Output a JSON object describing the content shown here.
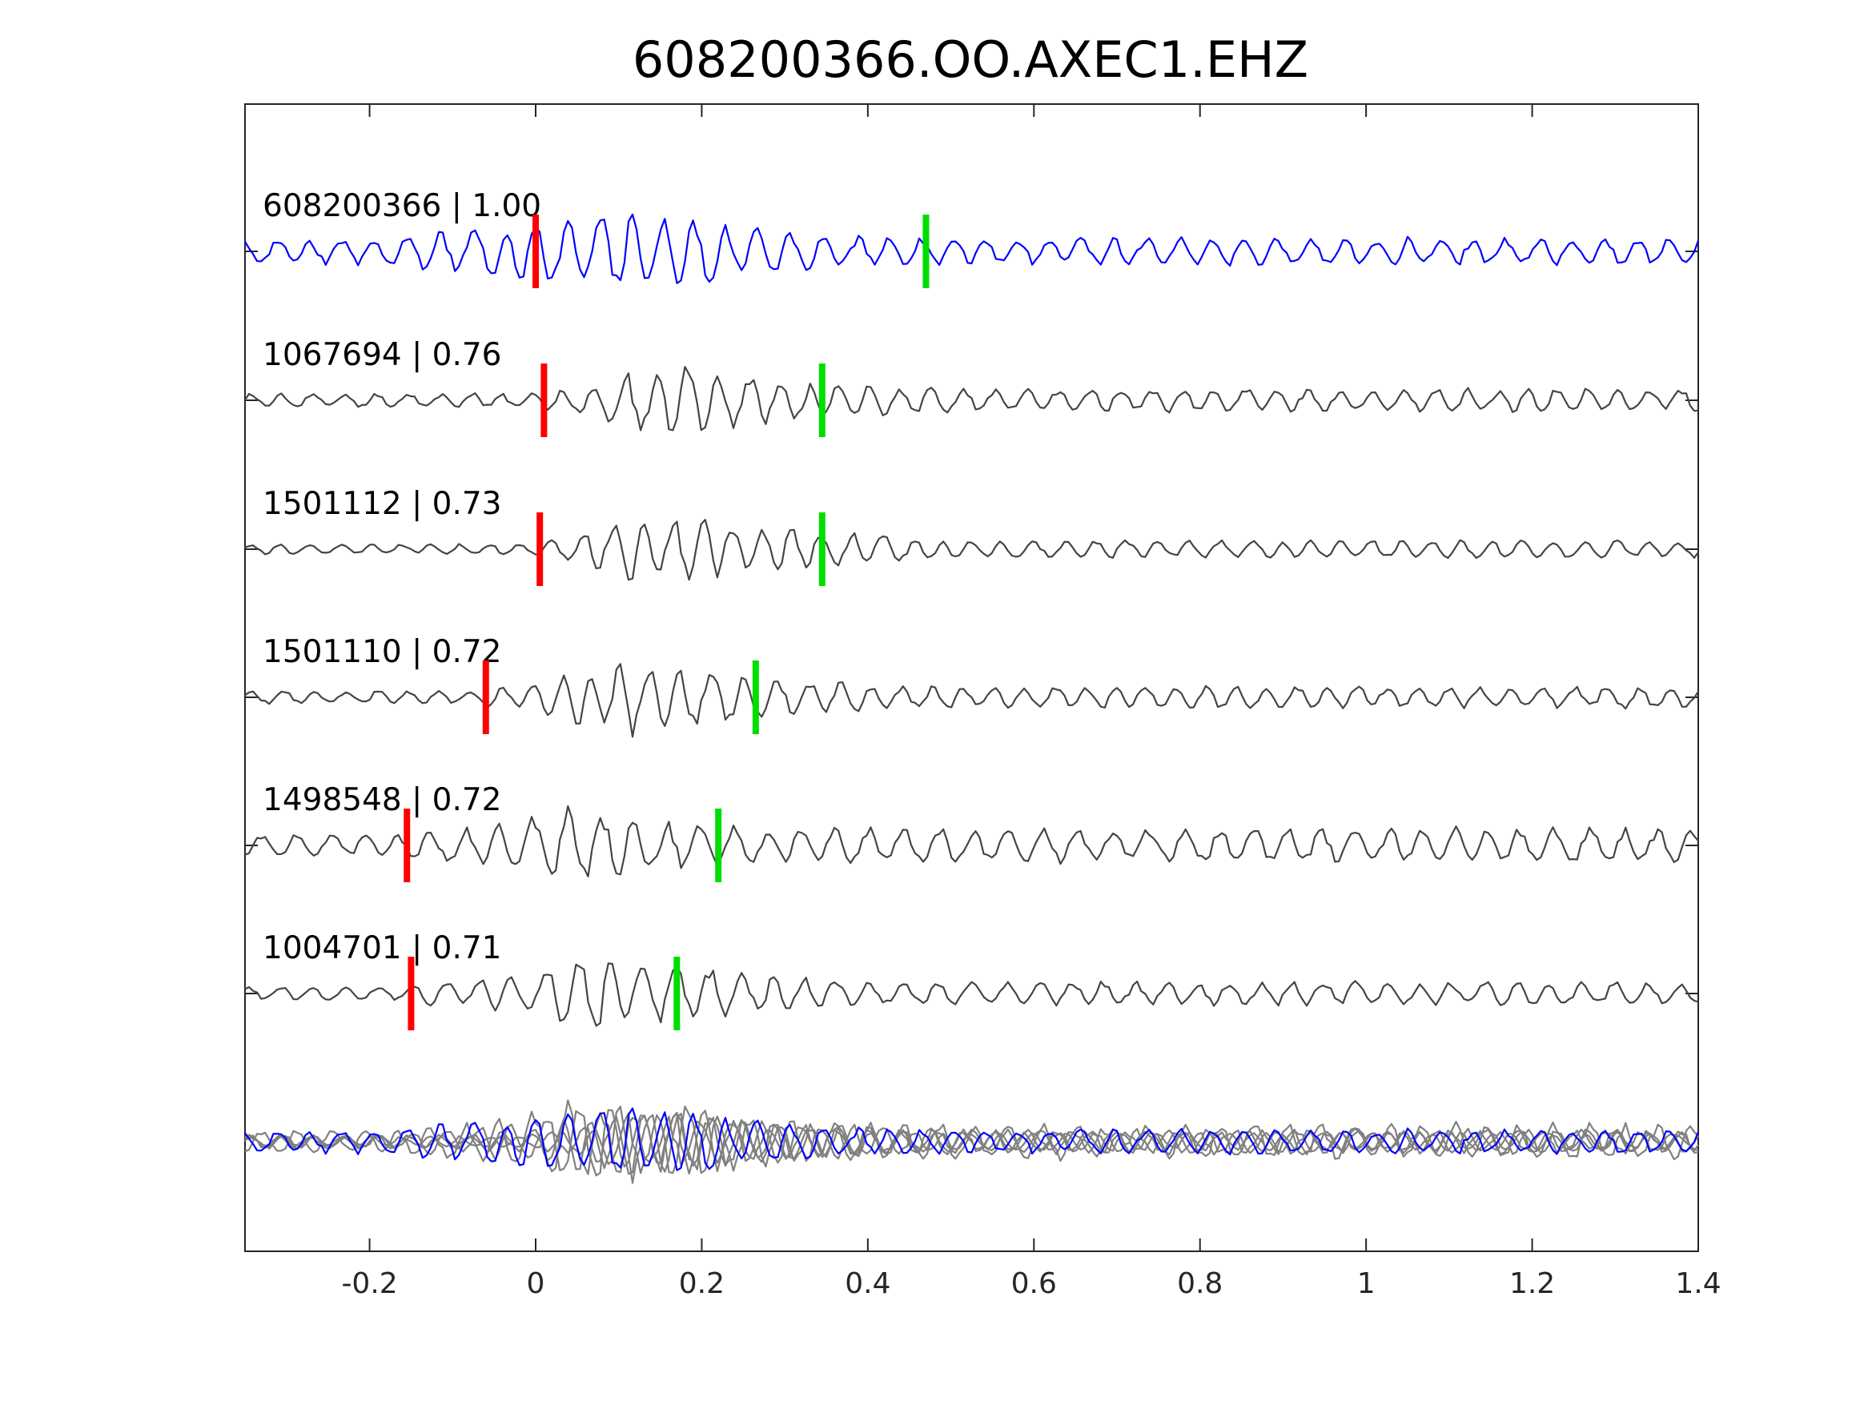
{
  "colors": {
    "template": "#0000ff",
    "match": "#444444",
    "overlay_match": "#808080",
    "p_pick": "#ff0000",
    "s_pick": "#00dd00"
  },
  "chart_data": {
    "type": "line",
    "title": "608200366.OO.AXEC1.EHZ",
    "xlabel": "",
    "ylabel": "",
    "xlim": [
      -0.35,
      1.4
    ],
    "xticks": [
      -0.2,
      0,
      0.2,
      0.4,
      0.6,
      0.8,
      1,
      1.2,
      1.4
    ],
    "xtick_labels": [
      "-0.2",
      "0",
      "0.2",
      "0.4",
      "0.6",
      "0.8",
      "1",
      "1.2",
      "1.4"
    ],
    "grid": false,
    "series": [
      {
        "name": "608200366 | 1.00",
        "role": "template",
        "p_pick": 0.0,
        "s_pick": 0.47,
        "onset": -0.35,
        "peak": 0.12,
        "seed": 3,
        "period": 0.038,
        "noise": 0.35
      },
      {
        "name": "1067694 | 0.76",
        "role": "match",
        "p_pick": 0.01,
        "s_pick": 0.345,
        "onset": 0.0,
        "peak": 0.15,
        "seed": 11,
        "period": 0.036,
        "noise": 0.3
      },
      {
        "name": "1501112 | 0.73",
        "role": "match",
        "p_pick": 0.005,
        "s_pick": 0.345,
        "onset": 0.0,
        "peak": 0.13,
        "seed": 17,
        "period": 0.036,
        "noise": 0.22
      },
      {
        "name": "1501110 | 0.72",
        "role": "match",
        "p_pick": -0.06,
        "s_pick": 0.265,
        "onset": -0.06,
        "peak": 0.1,
        "seed": 23,
        "period": 0.036,
        "noise": 0.28
      },
      {
        "name": "1498548 | 0.72",
        "role": "match",
        "p_pick": -0.155,
        "s_pick": 0.22,
        "onset": -0.16,
        "peak": 0.05,
        "seed": 31,
        "period": 0.04,
        "noise": 0.45
      },
      {
        "name": "1004701 | 0.71",
        "role": "match",
        "p_pick": -0.15,
        "s_pick": 0.17,
        "onset": -0.15,
        "peak": 0.08,
        "seed": 41,
        "period": 0.038,
        "noise": 0.3
      }
    ]
  }
}
